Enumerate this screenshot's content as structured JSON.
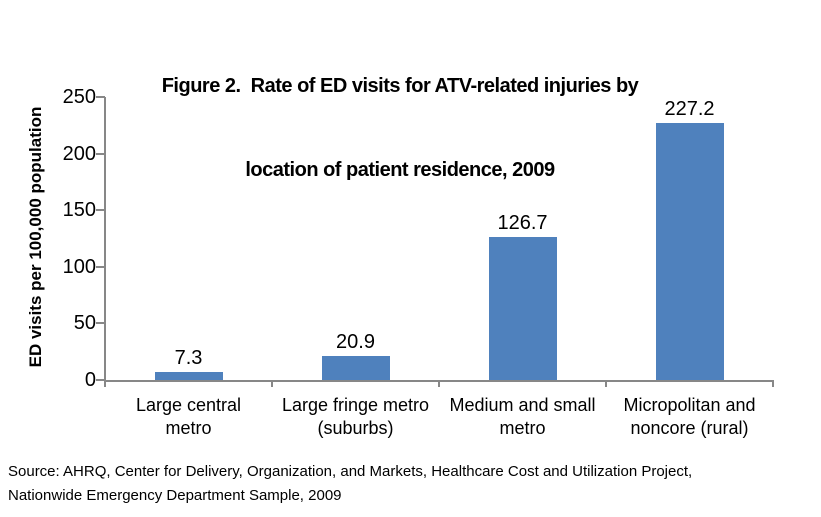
{
  "title_line1": "Figure 2.  Rate of ED visits for ATV-related injuries by",
  "title_line2": "location of patient residence, 2009",
  "source": "Source: AHRQ, Center for Delivery, Organization, and Markets, Healthcare Cost and Utilization Project, Nationwide Emergency Department Sample, 2009",
  "chart_data": {
    "type": "bar",
    "title": "Figure 2.  Rate of ED visits for ATV-related injuries by location of patient residence, 2009",
    "categories": [
      "Large central metro",
      "Large fringe metro (suburbs)",
      "Medium and small metro",
      "Micropolitan and noncore (rural)"
    ],
    "category_lines": [
      [
        "Large central",
        "metro"
      ],
      [
        "Large fringe metro",
        "(suburbs)"
      ],
      [
        "Medium and small",
        "metro"
      ],
      [
        "Micropolitan and",
        "noncore (rural)"
      ]
    ],
    "values": [
      7.3,
      20.9,
      126.7,
      227.2
    ],
    "data_labels": [
      "7.3",
      "20.9",
      "126.7",
      "227.2"
    ],
    "xlabel": "",
    "ylabel": "ED visits per 100,000 population",
    "ylim": [
      0,
      250
    ],
    "yticks": [
      0,
      50,
      100,
      150,
      200,
      250
    ],
    "bar_color": "#4F81BD",
    "axis_color": "#878787",
    "grid": false,
    "legend_position": "none"
  }
}
